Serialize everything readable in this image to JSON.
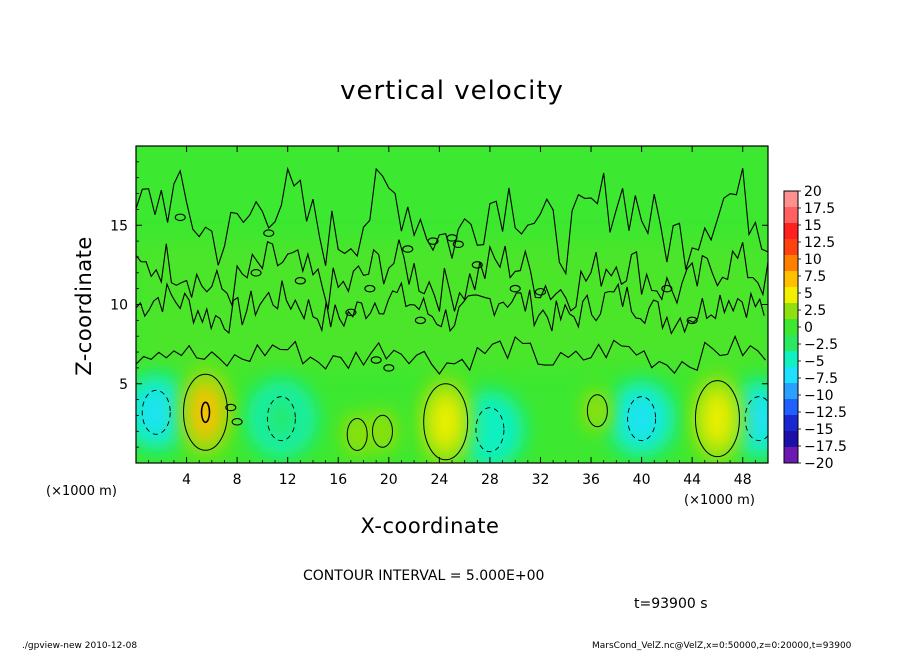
{
  "chart_data": {
    "type": "heatmap",
    "title": "vertical velocity",
    "xlabel": "X-coordinate",
    "ylabel": "Z-coordinate",
    "x_unit_left": "(×1000 m)",
    "x_unit_right": "(×1000 m)",
    "xlim": [
      0,
      50
    ],
    "ylim": [
      0,
      20
    ],
    "xticks": [
      4,
      8,
      12,
      16,
      20,
      24,
      28,
      32,
      36,
      40,
      44,
      48
    ],
    "xtick_labels": [
      "4",
      "8",
      "12",
      "16",
      "20",
      "24",
      "28",
      "32",
      "36",
      "40",
      "44",
      "48"
    ],
    "yticks": [
      5,
      10,
      15
    ],
    "ytick_labels": [
      "5",
      "10",
      "15"
    ],
    "colorbar": {
      "levels": [
        -20,
        -17.5,
        -15,
        -12.5,
        -10,
        -7.5,
        -5,
        -2.5,
        0,
        2.5,
        5,
        7.5,
        10,
        12.5,
        15,
        17.5,
        20
      ],
      "labels": [
        "20",
        "17.5",
        "15",
        "12.5",
        "10",
        "7.5",
        "5",
        "2.5",
        "0",
        "−2.5",
        "−5",
        "−7.5",
        "−10",
        "−12.5",
        "−15",
        "−17.5",
        "−20"
      ],
      "colors": [
        "#6a1ab0",
        "#1c10a8",
        "#1a28d0",
        "#2060ff",
        "#2aa0ff",
        "#20e0ff",
        "#10f0c0",
        "#2ce860",
        "#3ce830",
        "#90e010",
        "#f0f000",
        "#ffc000",
        "#ff8000",
        "#ff4010",
        "#ff2020",
        "#ff6060",
        "#ff9090"
      ]
    },
    "updrafts": [
      {
        "x": 5.5,
        "z": 3.2,
        "value": 9
      },
      {
        "x": 17.5,
        "z": 1.8,
        "value": 4
      },
      {
        "x": 19.5,
        "z": 2.0,
        "value": 3.5
      },
      {
        "x": 24.5,
        "z": 2.6,
        "value": 7
      },
      {
        "x": 36.5,
        "z": 3.3,
        "value": 3
      },
      {
        "x": 46.0,
        "z": 2.8,
        "value": 7
      }
    ],
    "downdrafts": [
      {
        "x": 1.6,
        "z": 3.2,
        "value": -6
      },
      {
        "x": 11.5,
        "z": 2.8,
        "value": -2
      },
      {
        "x": 28.0,
        "z": 2.1,
        "value": -4
      },
      {
        "x": 40.0,
        "z": 2.8,
        "value": -5
      },
      {
        "x": 49.3,
        "z": 2.8,
        "value": -5
      }
    ],
    "grid": false,
    "legend": "colorbar-right"
  },
  "annotations": {
    "contour_interval": "CONTOUR INTERVAL = 5.000E+00",
    "time": "t=93900 s",
    "footer_left": "./gpview-new   2010-12-08",
    "footer_right": "MarsCond_VelZ.nc@VelZ,x=0:50000,z=0:20000,t=93900"
  }
}
